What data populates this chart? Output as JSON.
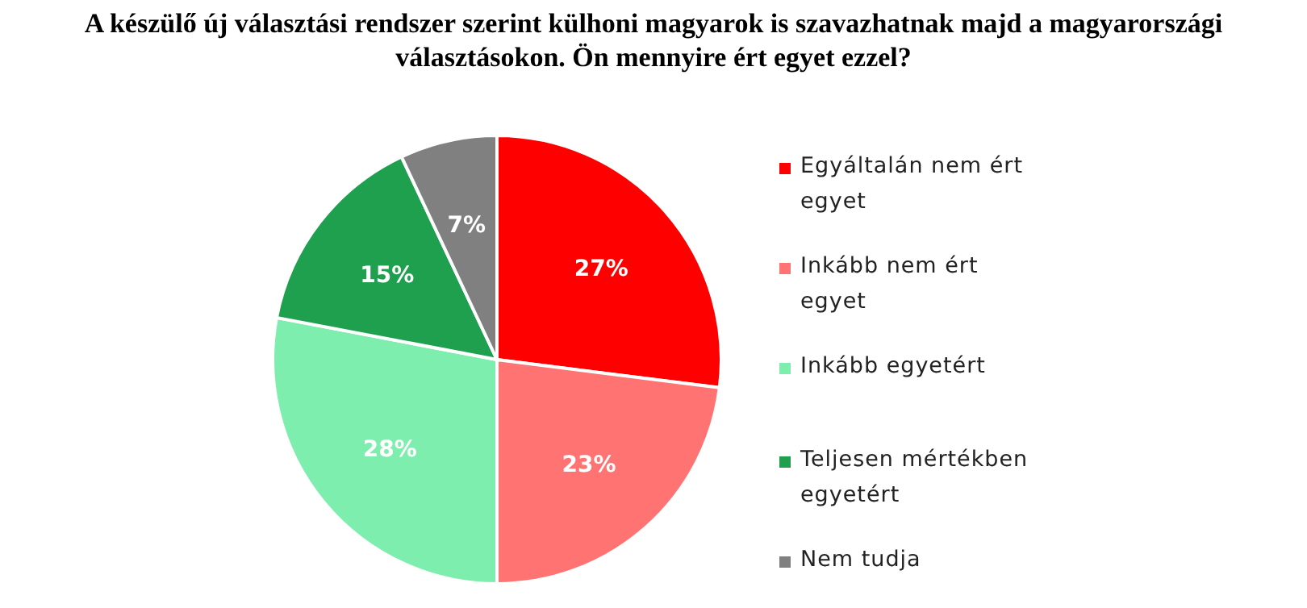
{
  "chart_data": {
    "type": "pie",
    "title": "A készülő új választási rendszer szerint külhoni magyarok is szavazhatnak majd a magyarországi választásokon. Ön mennyire ért egyet ezzel?",
    "categories": [
      "Egyáltalán nem ért egyet",
      "Inkább nem ért egyet",
      "Inkább egyetért",
      "Teljesen mértékben egyetért",
      "Nem tudja"
    ],
    "values": [
      27,
      23,
      28,
      15,
      7
    ],
    "colors": [
      "#ff0000",
      "#ff7373",
      "#7eeeae",
      "#1fa04e",
      "#808080"
    ],
    "value_labels": [
      "27%",
      "23%",
      "28%",
      "15%",
      "7%"
    ],
    "legend": "right"
  }
}
